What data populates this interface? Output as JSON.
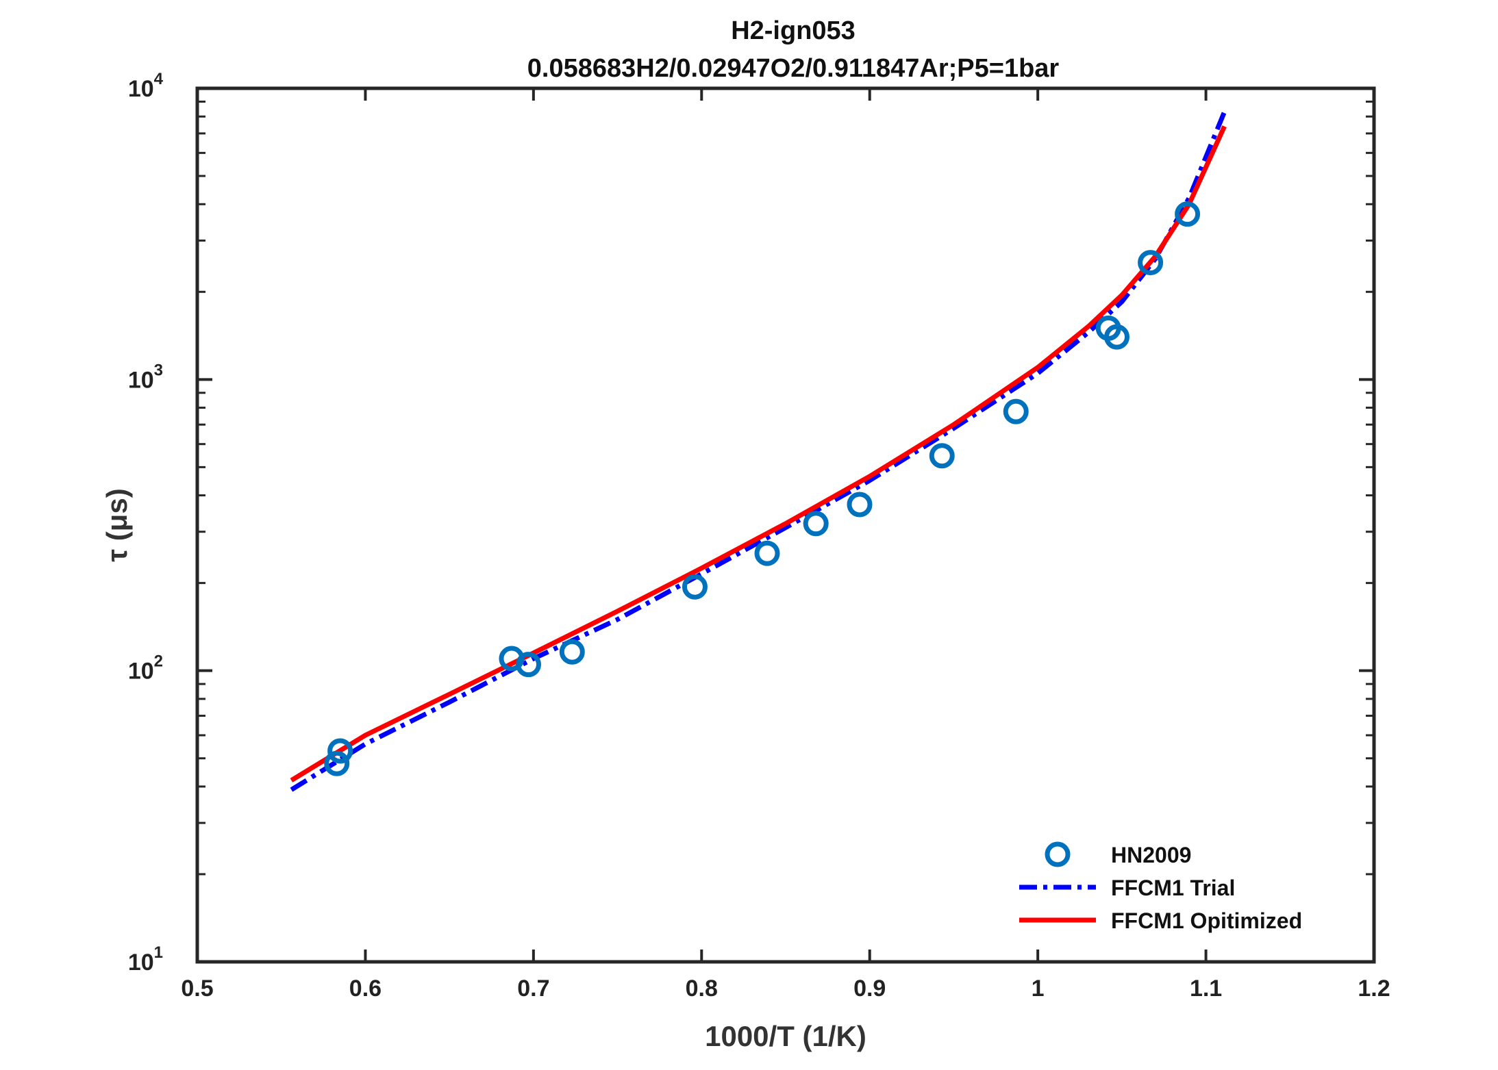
{
  "chart_data": {
    "type": "line",
    "title": "H2-ign053",
    "subtitle": "0.058683H2/0.02947O2/0.911847Ar;P5=1bar",
    "xlabel": "1000/T (1/K)",
    "ylabel": "τ (μs)",
    "xlim": [
      0.5,
      1.2
    ],
    "ylim": [
      10,
      10000
    ],
    "yscale": "log",
    "grid": false,
    "legend_position": "bottom-right",
    "x_ticks": [
      0.5,
      0.6,
      0.7,
      0.8,
      0.9,
      1.0,
      1.1,
      1.2
    ],
    "x_tick_labels": [
      "0.5",
      "0.6",
      "0.7",
      "0.8",
      "0.9",
      "1",
      "1.1",
      "1.2"
    ],
    "y_ticks": [
      {
        "value": 10,
        "base": "10",
        "exp": "1"
      },
      {
        "value": 100,
        "base": "10",
        "exp": "2"
      },
      {
        "value": 1000,
        "base": "10",
        "exp": "3"
      },
      {
        "value": 10000,
        "base": "10",
        "exp": "4"
      }
    ],
    "series": [
      {
        "name": "HN2009",
        "kind": "marker",
        "color": "#0072BD",
        "x": [
          0.583,
          0.585,
          0.687,
          0.697,
          0.723,
          0.796,
          0.839,
          0.868,
          0.894,
          0.943,
          0.987,
          1.042,
          1.047,
          1.067,
          1.089
        ],
        "y": [
          48,
          53,
          110,
          105,
          116,
          194,
          253,
          320,
          372,
          547,
          776,
          1500,
          1400,
          2520,
          3700
        ]
      },
      {
        "name": "FFCM1 Trial",
        "kind": "line",
        "style": "dashdot",
        "color": "#0000FF",
        "x": [
          0.556,
          0.6,
          0.65,
          0.7,
          0.75,
          0.8,
          0.85,
          0.9,
          0.95,
          1.0,
          1.03,
          1.05,
          1.07,
          1.09,
          1.111
        ],
        "y": [
          39,
          56,
          78,
          110,
          150,
          215,
          310,
          450,
          680,
          1050,
          1450,
          1850,
          2600,
          4200,
          8300
        ]
      },
      {
        "name": "FFCM1 Opitimized",
        "kind": "line",
        "style": "solid",
        "color": "#FF0000",
        "x": [
          0.556,
          0.6,
          0.65,
          0.7,
          0.75,
          0.8,
          0.85,
          0.9,
          0.95,
          1.0,
          1.03,
          1.05,
          1.07,
          1.09,
          1.111
        ],
        "y": [
          42,
          60,
          83,
          115,
          160,
          225,
          320,
          465,
          700,
          1100,
          1520,
          1950,
          2650,
          4000,
          7400
        ]
      }
    ]
  }
}
